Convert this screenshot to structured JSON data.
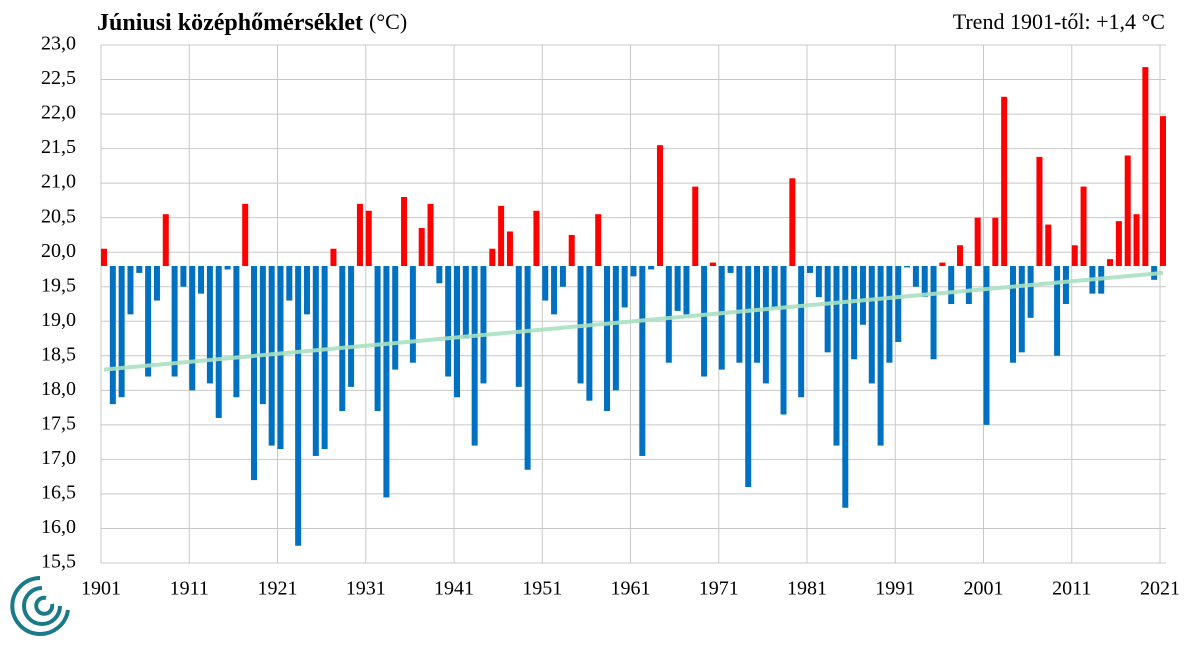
{
  "chart_data": {
    "type": "bar",
    "title": "Júniusi középhőmérséklet",
    "unit": "(°C)",
    "subtitle": "Trend 1901-től: +1,4 °C",
    "baseline": 19.8,
    "colors": {
      "above": "#ff0000",
      "below": "#0070c0"
    },
    "x": [
      1901,
      1902,
      1903,
      1904,
      1905,
      1906,
      1907,
      1908,
      1909,
      1910,
      1911,
      1912,
      1913,
      1914,
      1915,
      1916,
      1917,
      1918,
      1919,
      1920,
      1921,
      1922,
      1923,
      1924,
      1925,
      1926,
      1927,
      1928,
      1929,
      1930,
      1931,
      1932,
      1933,
      1934,
      1935,
      1936,
      1937,
      1938,
      1939,
      1940,
      1941,
      1942,
      1943,
      1944,
      1945,
      1946,
      1947,
      1948,
      1949,
      1950,
      1951,
      1952,
      1953,
      1954,
      1955,
      1956,
      1957,
      1958,
      1959,
      1960,
      1961,
      1962,
      1963,
      1964,
      1965,
      1966,
      1967,
      1968,
      1969,
      1970,
      1971,
      1972,
      1973,
      1974,
      1975,
      1976,
      1977,
      1978,
      1979,
      1980,
      1981,
      1982,
      1983,
      1984,
      1985,
      1986,
      1987,
      1988,
      1989,
      1990,
      1991,
      1992,
      1993,
      1994,
      1995,
      1996,
      1997,
      1998,
      1999,
      2000,
      2001,
      2002,
      2003,
      2004,
      2005,
      2006,
      2007,
      2008,
      2009,
      2010,
      2011,
      2012,
      2013,
      2014,
      2015,
      2016,
      2017,
      2018,
      2019,
      2020,
      2021
    ],
    "values": [
      20.05,
      17.8,
      17.9,
      19.1,
      19.7,
      18.2,
      19.3,
      20.55,
      18.2,
      19.5,
      18.0,
      19.4,
      18.1,
      17.6,
      19.75,
      17.9,
      20.7,
      16.7,
      17.8,
      17.2,
      17.15,
      19.3,
      15.75,
      19.1,
      17.05,
      17.15,
      20.05,
      17.7,
      18.05,
      20.7,
      20.6,
      17.7,
      16.45,
      18.3,
      20.8,
      18.4,
      20.35,
      20.7,
      19.55,
      18.2,
      17.9,
      18.75,
      17.2,
      18.1,
      20.05,
      20.67,
      20.3,
      18.05,
      16.85,
      20.6,
      19.3,
      19.1,
      19.5,
      20.25,
      18.1,
      17.85,
      20.55,
      17.7,
      18.0,
      19.2,
      19.65,
      17.05,
      19.75,
      21.55,
      18.4,
      19.15,
      19.1,
      20.95,
      18.2,
      19.85,
      18.3,
      19.7,
      18.4,
      16.6,
      18.4,
      18.1,
      19.2,
      17.65,
      21.07,
      17.9,
      19.7,
      19.35,
      18.55,
      17.2,
      16.3,
      18.45,
      18.95,
      18.1,
      17.2,
      18.4,
      18.7,
      19.78,
      19.5,
      19.35,
      18.45,
      19.85,
      19.25,
      20.1,
      19.25,
      20.5,
      17.5,
      20.5,
      22.25,
      18.4,
      18.55,
      19.05,
      21.38,
      20.4,
      18.5,
      19.25,
      20.1,
      20.95,
      19.4,
      19.4,
      19.9,
      20.45,
      21.4,
      20.55,
      22.68,
      19.6,
      21.97
    ],
    "trend": {
      "x": [
        1901,
        2021
      ],
      "values": [
        18.3,
        19.7
      ],
      "color": "#a8e0c0"
    },
    "xlim": [
      1901,
      2021
    ],
    "xticks": [
      1901,
      1911,
      1921,
      1931,
      1941,
      1951,
      1961,
      1971,
      1981,
      1991,
      2001,
      2011,
      2021
    ],
    "ylim": [
      15.5,
      23
    ],
    "yticks": [
      {
        "value": 15.5,
        "label": "15,5"
      },
      {
        "value": 16,
        "label": "16,0"
      },
      {
        "value": 16.5,
        "label": "16,5"
      },
      {
        "value": 17,
        "label": "17,0"
      },
      {
        "value": 17.5,
        "label": "17,5"
      },
      {
        "value": 18,
        "label": "18,0"
      },
      {
        "value": 18.5,
        "label": "18,5"
      },
      {
        "value": 19,
        "label": "19,0"
      },
      {
        "value": 19.5,
        "label": "19,5"
      },
      {
        "value": 20,
        "label": "20,0"
      },
      {
        "value": 20.5,
        "label": "20,5"
      },
      {
        "value": 21,
        "label": "21,0"
      },
      {
        "value": 21.5,
        "label": "21,5"
      },
      {
        "value": 22,
        "label": "22,0"
      },
      {
        "value": 22.5,
        "label": "22,5"
      },
      {
        "value": 23,
        "label": "23,0"
      }
    ],
    "grid": true
  }
}
